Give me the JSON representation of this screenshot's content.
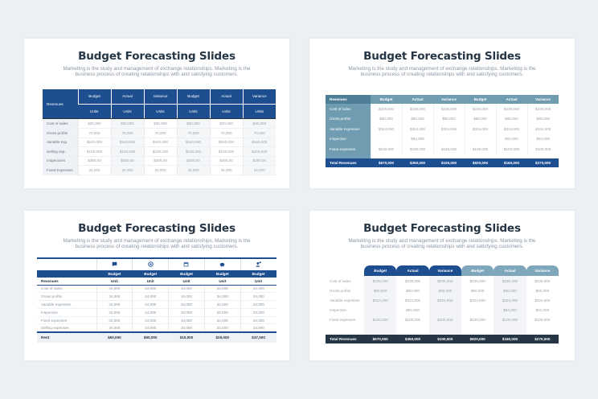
{
  "title": "Budget Forecasting Slides",
  "subtitle": "Marketing is the study and management of exchange relationships. Marketing is the business process of creating relationships with and satisfying customers.",
  "slide1": {
    "corner": "Revenues",
    "heads": [
      "Budget",
      "Actual",
      "Variance",
      "Budget",
      "Actual",
      "Variance"
    ],
    "units": [
      "Units",
      "Units",
      "Units",
      "Units",
      "Units",
      "Units"
    ],
    "rows": [
      {
        "label": "Cost of sales",
        "v": [
          "$30,000",
          "$30,000",
          "$30,000",
          "$30,000",
          "$30,000",
          "$30,000"
        ]
      },
      {
        "label": "Gross profits",
        "v": [
          "70,000",
          "70,000",
          "70,000",
          "70,000",
          "70,000",
          "70,000"
        ]
      },
      {
        "label": "Variable exp.",
        "v": [
          "$240,000",
          "$240,000",
          "$240,000",
          "$240,000",
          "$240,000",
          "$240,000"
        ]
      },
      {
        "label": "Selling exp.",
        "v": [
          "$100,000",
          "$100,000",
          "$100,000",
          "$100,000",
          "$100,000",
          "$100,000"
        ]
      },
      {
        "label": "Inspections",
        "v": [
          "$390,00",
          "$390,00",
          "$390,00",
          "$390,00",
          "$390,00",
          "$390,00"
        ]
      },
      {
        "label": "Fixed Expenses",
        "v": [
          "34,000",
          "34,000",
          "34,000",
          "34,000",
          "34,000",
          "34,000"
        ]
      }
    ]
  },
  "slide2": {
    "corner": "Revenues",
    "heads": [
      "Budget",
      "Actual",
      "Variance",
      "Budget",
      "Actual",
      "Variance"
    ],
    "rows": [
      {
        "label": "Cost of sales",
        "v": [
          "$235,000",
          "$235,000",
          "$235,000",
          "$235,000",
          "$235,000",
          "$235,000"
        ]
      },
      {
        "label": "Gross profits",
        "v": [
          "$60,000",
          "$60,000",
          "$60,000",
          "$60,000",
          "$60,000",
          "$60,000"
        ]
      },
      {
        "label": "Variable expenses",
        "v": [
          "$324,000",
          "$324,000",
          "$324,000",
          "$324,000",
          "$324,000",
          "$324,000"
        ]
      },
      {
        "label": "Inspection",
        "v": [
          "",
          "$94,000",
          "",
          "",
          "$94,000",
          "$94,000"
        ]
      },
      {
        "label": "Fixed expenses",
        "v": [
          "$100,000",
          "$100,000",
          "$100,000",
          "$100,000",
          "$100,000",
          "$100,000"
        ]
      }
    ],
    "total_label": "Total Revenues",
    "totals": [
      "$670,000",
      "$350,000",
      "$100,000",
      "$920,000",
      "$160,000",
      "$270,000"
    ]
  },
  "slide3": {
    "icons": [
      "chat-icon",
      "target-icon",
      "calendar-icon",
      "piggy-bank-icon",
      "user-chat-icon"
    ],
    "heads": [
      "Budget",
      "Budget",
      "Budget",
      "Budget",
      "Budget"
    ],
    "corner": "Revenues",
    "units": [
      "Unit",
      "Unit",
      "Unit",
      "Unit",
      "Unit"
    ],
    "rows": [
      {
        "label": "Cost of sales",
        "v": [
          "34,000",
          "34,000",
          "34,000",
          "34,000",
          "34,000"
        ]
      },
      {
        "label": "Gross profits",
        "v": [
          "34,000",
          "34,000",
          "34,000",
          "34,000",
          "34,000"
        ]
      },
      {
        "label": "Variable expenses",
        "v": [
          "34,000",
          "34,000",
          "34,000",
          "34,000",
          "34,000"
        ]
      },
      {
        "label": "Inspection",
        "v": [
          "34,000",
          "34,000",
          "34,000",
          "34,000",
          "34,000"
        ]
      },
      {
        "label": "Fixed expenses",
        "v": [
          "34,000",
          "34,000",
          "34,000",
          "34,000",
          "34,000"
        ]
      },
      {
        "label": "Selling expenses",
        "v": [
          "34,000",
          "34,000",
          "34,000",
          "34,000",
          "34,000"
        ]
      }
    ],
    "total_label": "Rent",
    "totals": [
      "$60,000",
      "$50,000",
      "$10,000",
      "$25,000",
      "$37,000"
    ]
  },
  "slide4": {
    "heads": [
      "Budget",
      "Actual",
      "Variance",
      "Budget",
      "Actual",
      "Variance"
    ],
    "rows": [
      {
        "label": "Cost of sales",
        "v": [
          "$235,000",
          "$235,000",
          "$235,000",
          "$235,000",
          "$235,000",
          "$235,000"
        ]
      },
      {
        "label": "Gross profits",
        "v": [
          "$60,000",
          "$60,000",
          "$60,000",
          "$60,000",
          "$60,000",
          "$60,000"
        ]
      },
      {
        "label": "Variable expenses",
        "v": [
          "$324,000",
          "$324,000",
          "$324,000",
          "$324,000",
          "$324,000",
          "$324,000"
        ]
      },
      {
        "label": "Inspection",
        "v": [
          "",
          "$94,000",
          "",
          "",
          "$94,000",
          "$94,000"
        ]
      },
      {
        "label": "Fixed expenses",
        "v": [
          "$100,000",
          "$100,000",
          "$100,000",
          "$100,000",
          "$100,000",
          "$100,000"
        ]
      }
    ],
    "total_label": "Total Revenues",
    "totals": [
      "$670,000",
      "$350,000",
      "$100,000",
      "$920,000",
      "$160,000",
      "$270,000"
    ]
  },
  "colors": {
    "navy": "#1d4e8f",
    "steel": "#6f9cb0",
    "dark": "#263645"
  }
}
